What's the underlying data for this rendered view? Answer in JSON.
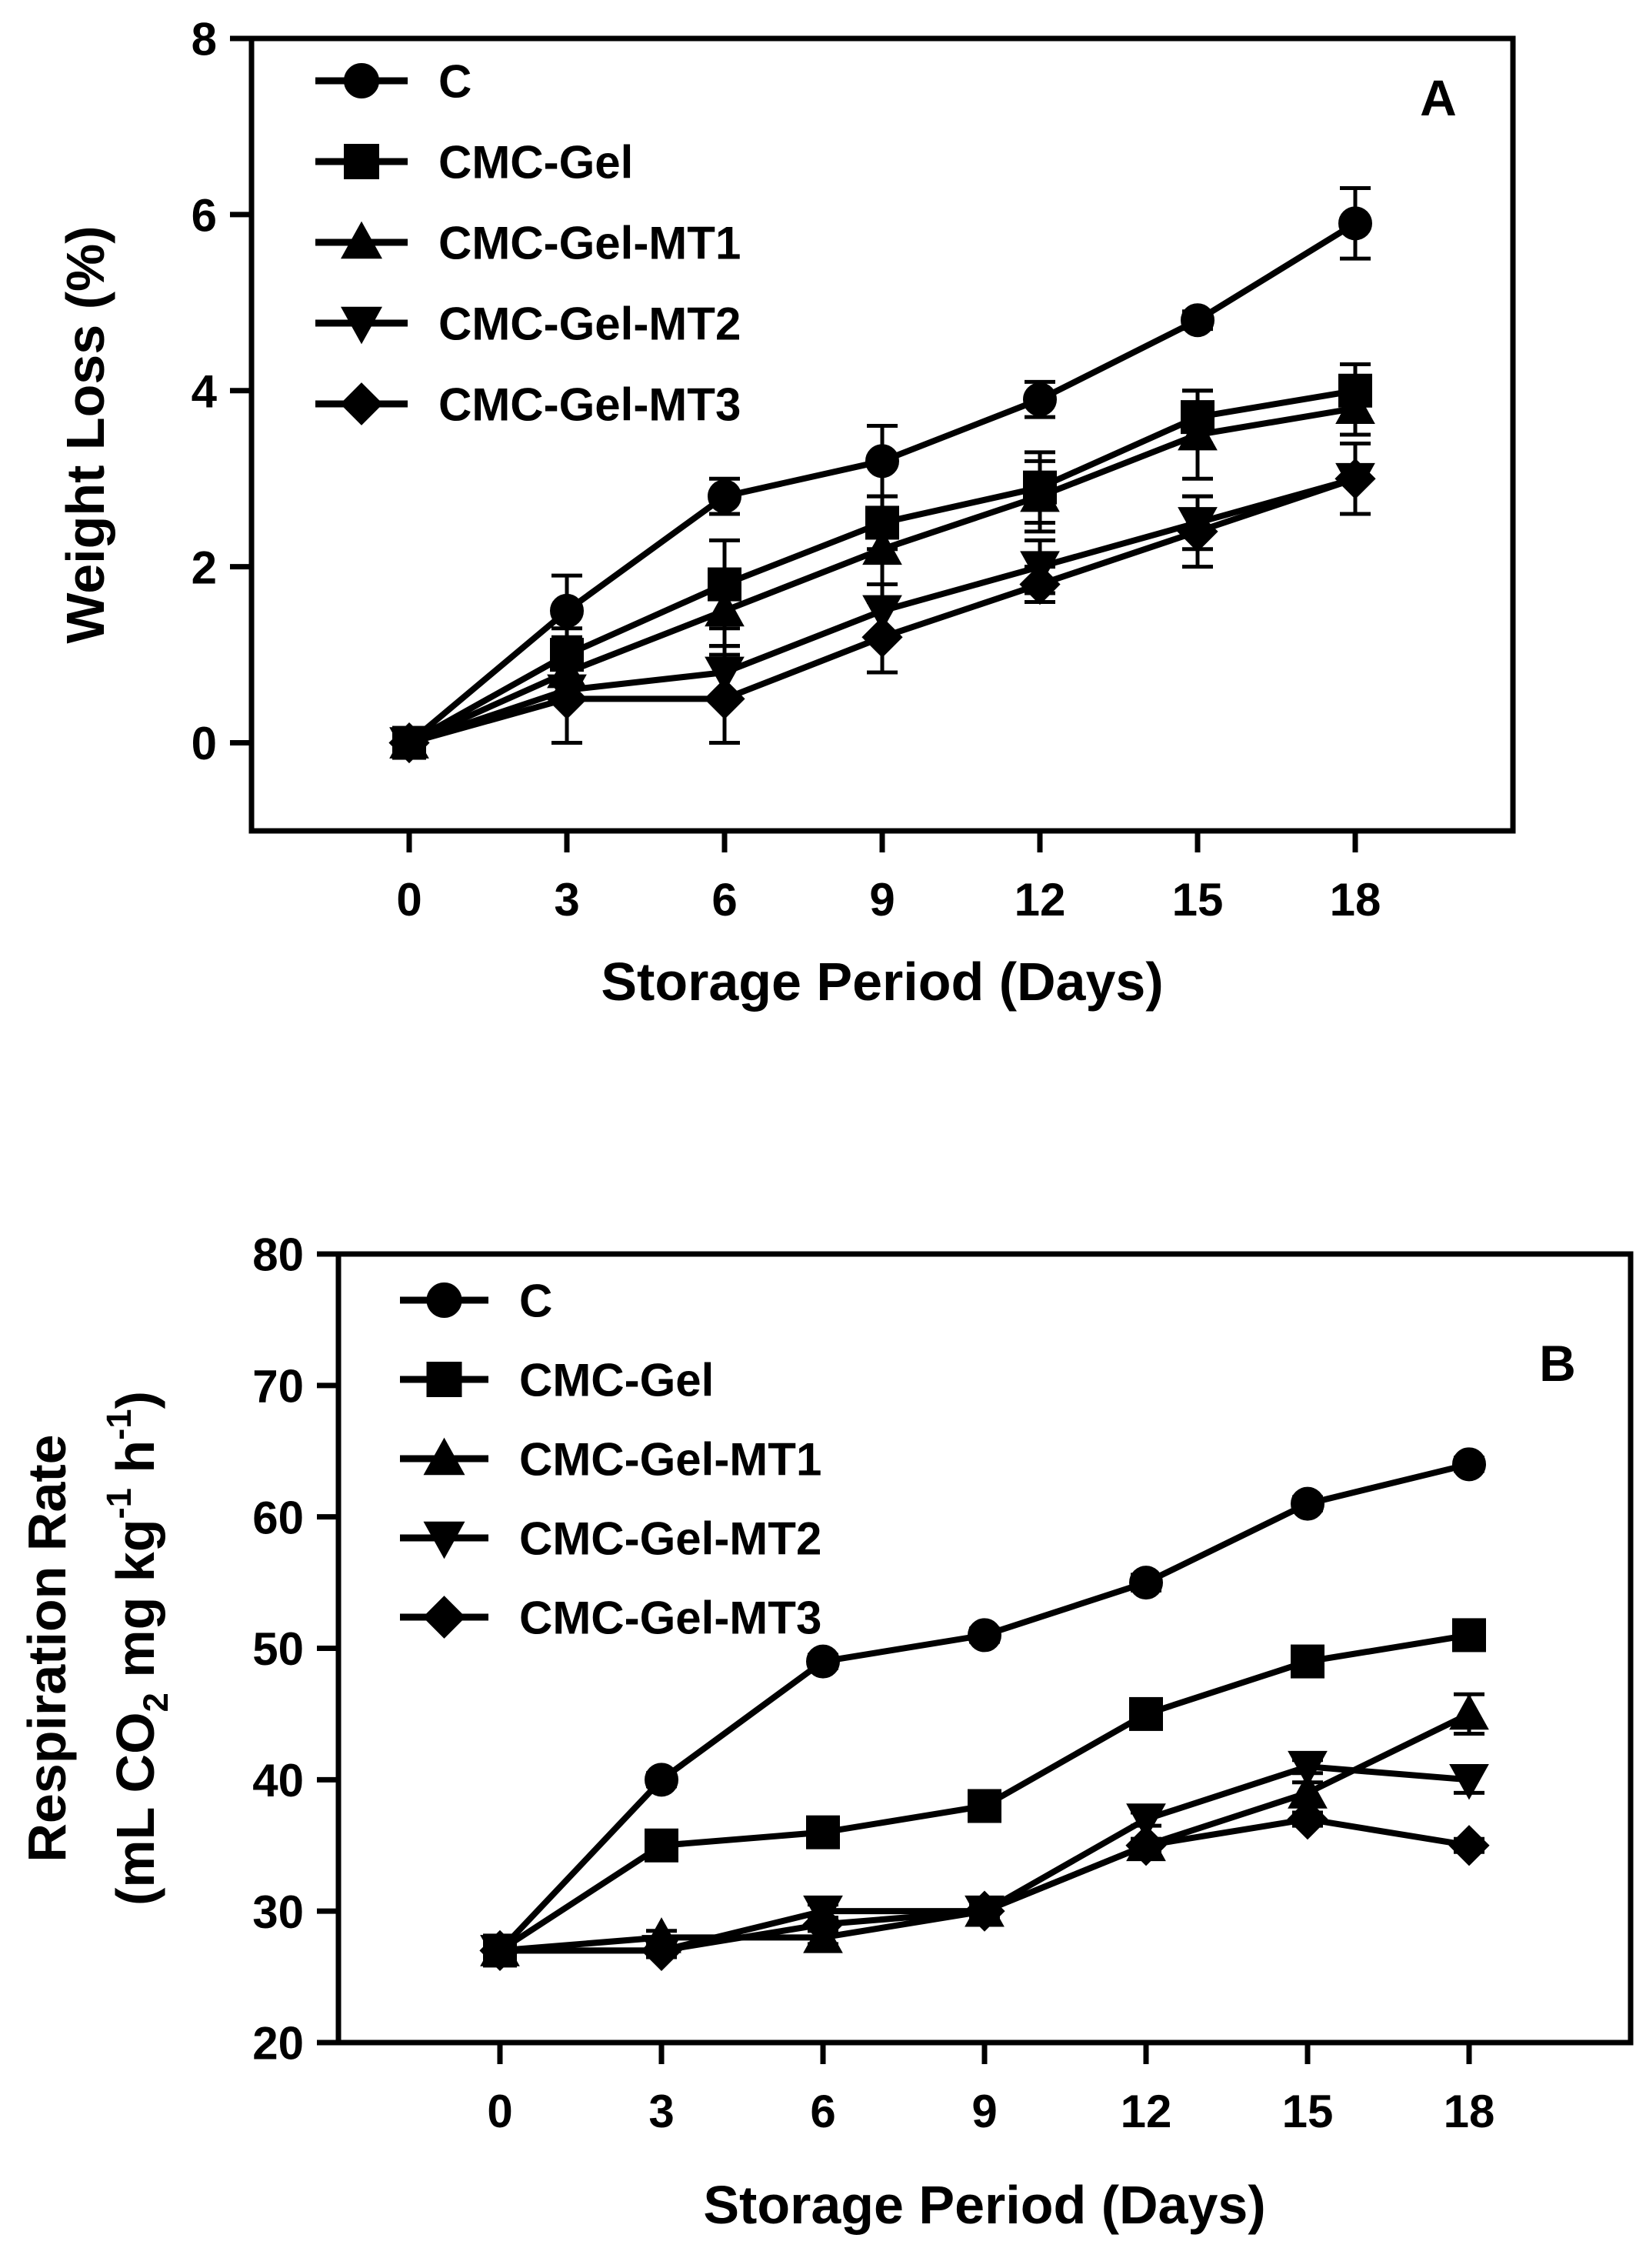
{
  "chart_data": [
    {
      "type": "line",
      "panel_label": "A",
      "xlabel": "Storage Period (Days)",
      "ylabel": "Weight Loss (%)",
      "ylabel_sub": "",
      "x": [
        0,
        3,
        6,
        9,
        12,
        15,
        18
      ],
      "xlim": [
        -3,
        21
      ],
      "ylim": [
        -1,
        8
      ],
      "xticks": [
        "0",
        "3",
        "6",
        "9",
        "12",
        "15",
        "18"
      ],
      "yticks": [
        "0",
        "2",
        "4",
        "6",
        "8"
      ],
      "ytick_values": [
        0,
        2,
        4,
        6,
        8
      ],
      "legend_position": "top-left",
      "series": [
        {
          "name": "C",
          "marker": "circle",
          "values": [
            0,
            1.5,
            2.8,
            3.2,
            3.9,
            4.8,
            5.9
          ],
          "errors": [
            0,
            0.4,
            0.2,
            0.4,
            0.2,
            0.1,
            0.4
          ]
        },
        {
          "name": "CMC-Gel",
          "marker": "square",
          "values": [
            0,
            1.0,
            1.8,
            2.5,
            2.9,
            3.7,
            4.0
          ],
          "errors": [
            0,
            0.3,
            0.5,
            0.3,
            0.4,
            0.3,
            0.3
          ]
        },
        {
          "name": "CMC-Gel-MT1",
          "marker": "triangle-up",
          "values": [
            0,
            0.8,
            1.5,
            2.2,
            2.8,
            3.5,
            3.8
          ],
          "errors": [
            0,
            0.3,
            0.4,
            0.4,
            0.4,
            0.5,
            0.3
          ]
        },
        {
          "name": "CMC-Gel-MT2",
          "marker": "triangle-down",
          "values": [
            0,
            0.6,
            0.8,
            1.5,
            2.0,
            2.5,
            3.0
          ],
          "errors": [
            0,
            0.6,
            0.3,
            0.3,
            0.3,
            0.3,
            0.4
          ]
        },
        {
          "name": "CMC-Gel-MT3",
          "marker": "diamond",
          "values": [
            0,
            0.5,
            0.5,
            1.2,
            1.8,
            2.4,
            3.0
          ],
          "errors": [
            0,
            0.5,
            0.5,
            0.4,
            0.2,
            0.4,
            0.4
          ]
        }
      ]
    },
    {
      "type": "line",
      "panel_label": "B",
      "xlabel": "Storage Period (Days)",
      "ylabel": "Respiration Rate",
      "ylabel_sub": "(mL CO2 mg kg-1 h-1)",
      "x": [
        0,
        3,
        6,
        9,
        12,
        15,
        18
      ],
      "xlim": [
        -3,
        21
      ],
      "ylim": [
        20,
        80
      ],
      "xticks": [
        "0",
        "3",
        "6",
        "9",
        "12",
        "15",
        "18"
      ],
      "yticks": [
        "20",
        "30",
        "40",
        "50",
        "60",
        "70",
        "80"
      ],
      "ytick_values": [
        20,
        30,
        40,
        50,
        60,
        70,
        80
      ],
      "legend_position": "top-left",
      "series": [
        {
          "name": "C",
          "marker": "circle",
          "values": [
            27,
            40,
            49,
            51,
            55,
            61,
            64
          ],
          "errors": [
            0,
            0.5,
            0.5,
            0.5,
            0.6,
            0.5,
            0.5
          ]
        },
        {
          "name": "CMC-Gel",
          "marker": "square",
          "values": [
            27,
            35,
            36,
            38,
            45,
            49,
            51
          ],
          "errors": [
            0,
            0.5,
            0.5,
            0.5,
            0.5,
            0.5,
            0.5
          ]
        },
        {
          "name": "CMC-Gel-MT1",
          "marker": "triangle-up",
          "values": [
            27,
            28,
            28,
            30,
            35,
            39,
            45
          ],
          "errors": [
            0,
            0.5,
            0.5,
            0.5,
            0.5,
            0.8,
            1.5
          ]
        },
        {
          "name": "CMC-Gel-MT2",
          "marker": "triangle-down",
          "values": [
            27,
            27,
            30,
            30,
            37,
            41,
            40
          ],
          "errors": [
            0,
            0.5,
            0.5,
            0.5,
            0.5,
            0.5,
            1.0
          ]
        },
        {
          "name": "CMC-Gel-MT3",
          "marker": "diamond",
          "values": [
            27,
            27,
            29,
            30,
            35,
            37,
            35
          ],
          "errors": [
            0,
            0.5,
            0.5,
            0.5,
            0.5,
            0.5,
            0.5
          ]
        }
      ]
    }
  ]
}
